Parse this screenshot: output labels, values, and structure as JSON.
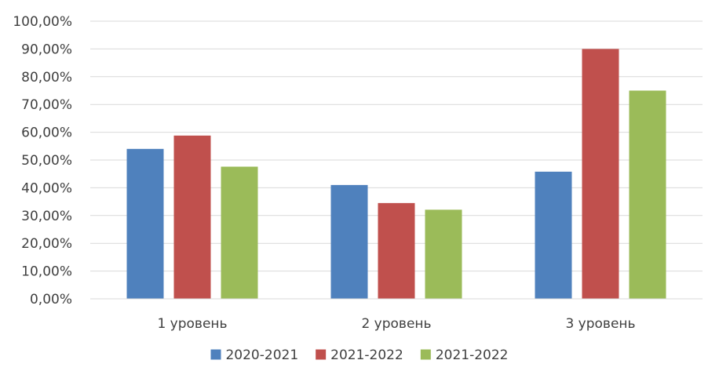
{
  "chart_data": {
    "type": "bar",
    "title": "",
    "xlabel": "",
    "ylabel": "",
    "categories": [
      "1 уровень",
      "2 уровень",
      "3 уровень"
    ],
    "series": [
      {
        "name": "2020-2021",
        "color": "#4F81BD",
        "values": [
          54.0,
          41.0,
          45.8
        ]
      },
      {
        "name": "2021-2022",
        "color": "#C0504D",
        "values": [
          58.8,
          34.5,
          90.0
        ]
      },
      {
        "name": "2021-2022",
        "color": "#9BBB59",
        "values": [
          47.6,
          32.1,
          75.0
        ]
      }
    ],
    "ylim": [
      0,
      100
    ],
    "yticks": [
      "0,00%",
      "10,00%",
      "20,00%",
      "30,00%",
      "40,00%",
      "50,00%",
      "60,00%",
      "70,00%",
      "80,00%",
      "90,00%",
      "100,00%"
    ],
    "grid": true,
    "legend_position": "bottom",
    "gridline_color": "#D9D9D9"
  }
}
